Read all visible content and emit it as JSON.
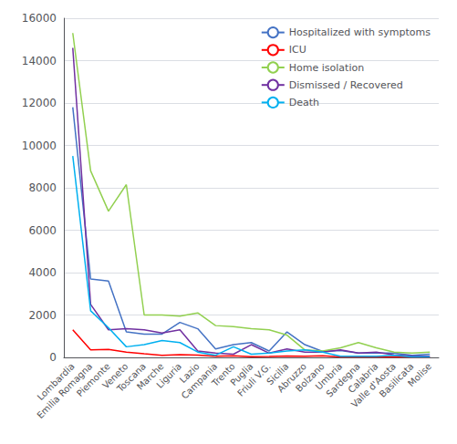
{
  "chart_data": {
    "type": "line",
    "categories": [
      "Lombardia",
      "Emilia Romagna",
      "Piemonte",
      "Veneto",
      "Toscana",
      "Marche",
      "Liguria",
      "Lazio",
      "Campania",
      "Trento",
      "Puglia",
      "Friuli V.G.",
      "Sicilia",
      "Abruzzo",
      "Bolzano",
      "Umbria",
      "Sardegna",
      "Calabria",
      "Valle d'Aosta",
      "Basilicata",
      "Molise"
    ],
    "series": [
      {
        "name": "Hospitalized with symptoms",
        "color": "#4472c4",
        "values": [
          11800,
          3700,
          3600,
          1200,
          1100,
          1100,
          1650,
          1350,
          400,
          600,
          700,
          300,
          1200,
          600,
          280,
          320,
          200,
          200,
          200,
          100,
          150
        ]
      },
      {
        "name": "ICU",
        "color": "#ff0000",
        "values": [
          1300,
          350,
          380,
          250,
          170,
          100,
          130,
          110,
          50,
          80,
          30,
          40,
          60,
          50,
          80,
          20,
          30,
          20,
          30,
          10,
          10
        ]
      },
      {
        "name": "Home isolation",
        "color": "#92d050",
        "values": [
          15300,
          8800,
          6900,
          8150,
          2000,
          2000,
          1950,
          2100,
          1500,
          1450,
          1350,
          1300,
          1050,
          350,
          300,
          450,
          700,
          450,
          250,
          200,
          250
        ]
      },
      {
        "name": "Dismissed / Recovered",
        "color": "#7030a0",
        "values": [
          14600,
          2500,
          1300,
          1350,
          1300,
          1150,
          1300,
          300,
          200,
          150,
          600,
          200,
          400,
          250,
          250,
          350,
          200,
          250,
          120,
          60,
          50
        ]
      },
      {
        "name": "Death",
        "color": "#00b0f0",
        "values": [
          9500,
          2200,
          1400,
          500,
          600,
          800,
          700,
          250,
          100,
          500,
          150,
          200,
          300,
          350,
          250,
          50,
          50,
          50,
          100,
          20,
          20
        ]
      }
    ],
    "ylim": [
      0,
      16000
    ],
    "yticks": [
      0,
      2000,
      4000,
      6000,
      8000,
      10000,
      12000,
      14000,
      16000
    ],
    "grid": true,
    "legend": "upper right"
  }
}
